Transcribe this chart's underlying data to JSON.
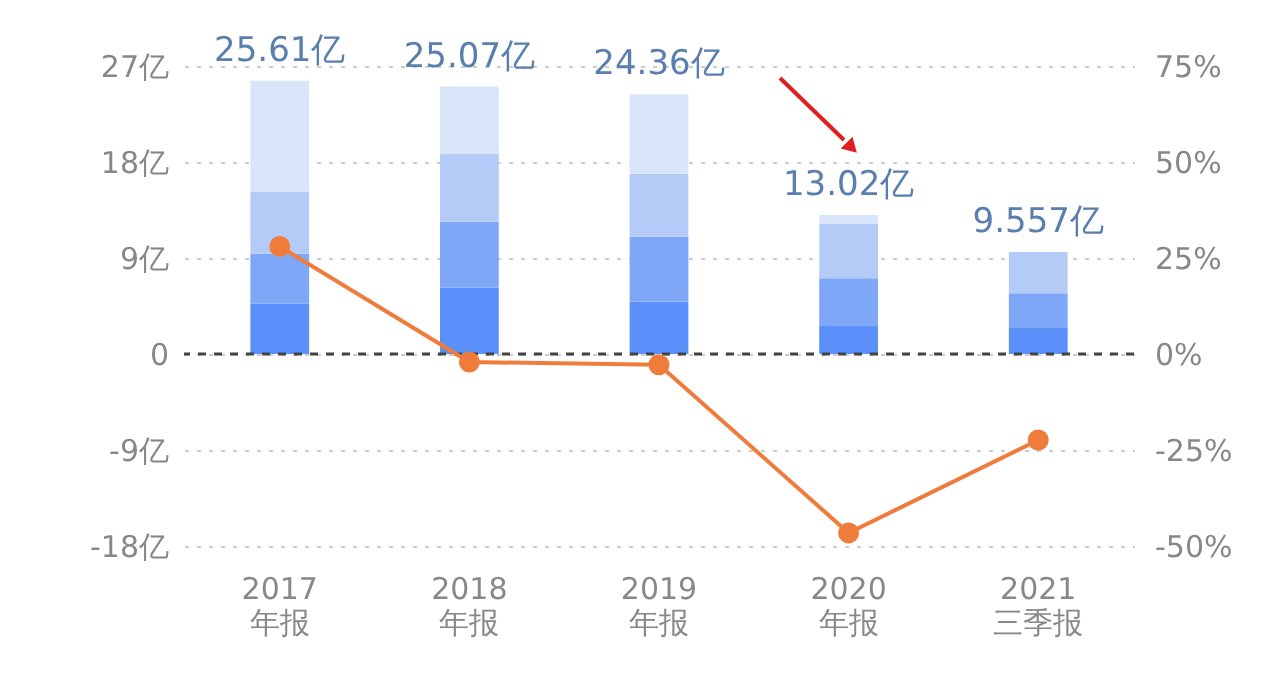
{
  "chart_data": {
    "type": "bar",
    "stacked": true,
    "categories": [
      "2017\n年报",
      "2018\n年报",
      "2019\n年报",
      "2020\n年报",
      "2021\n三季报"
    ],
    "series": [
      {
        "color": "#5b8ff9",
        "values": [
          4.7,
          6.2,
          4.9,
          2.7,
          2.5
        ]
      },
      {
        "color": "#7ea8f7",
        "values": [
          4.7,
          6.2,
          6.1,
          4.4,
          3.2
        ]
      },
      {
        "color": "#b4cbf8",
        "values": [
          5.8,
          6.4,
          5.9,
          5.1,
          3.857
        ]
      },
      {
        "color": "#d9e5fa",
        "values": [
          10.41,
          6.27,
          7.46,
          0.82,
          null
        ]
      },
      {
        "type": "line",
        "axis": "y2",
        "color": "#f07c3c",
        "values": [
          28,
          -2.1,
          -2.8,
          -46.6,
          -22.4
        ]
      }
    ],
    "totals": [
      "25.61亿",
      "25.07亿",
      "24.36亿",
      "13.02亿",
      "9.557亿"
    ],
    "ylim": [
      -18,
      27
    ],
    "yticks": [
      {
        "value": -18,
        "label": "-18亿"
      },
      {
        "value": -9,
        "label": "-9亿"
      },
      0,
      {
        "value": 9,
        "label": "9亿"
      },
      {
        "value": 18,
        "label": "18亿"
      },
      {
        "value": 27,
        "label": "27亿"
      }
    ],
    "y2lim": [
      -50,
      75
    ],
    "y2ticks": [
      {
        "value": -50,
        "label": "-50%"
      },
      {
        "value": -25,
        "label": "-25%"
      },
      {
        "value": 0,
        "label": "0%"
      },
      {
        "value": 25,
        "label": "25%"
      },
      {
        "value": 50,
        "label": "50%"
      },
      {
        "value": 75,
        "label": "75%"
      }
    ],
    "ref_lines": [
      {
        "axis": "y",
        "value": 0,
        "color": "#444444",
        "line_style": "dashed"
      }
    ],
    "grid": "y",
    "marker": "circle",
    "legend": false
  }
}
